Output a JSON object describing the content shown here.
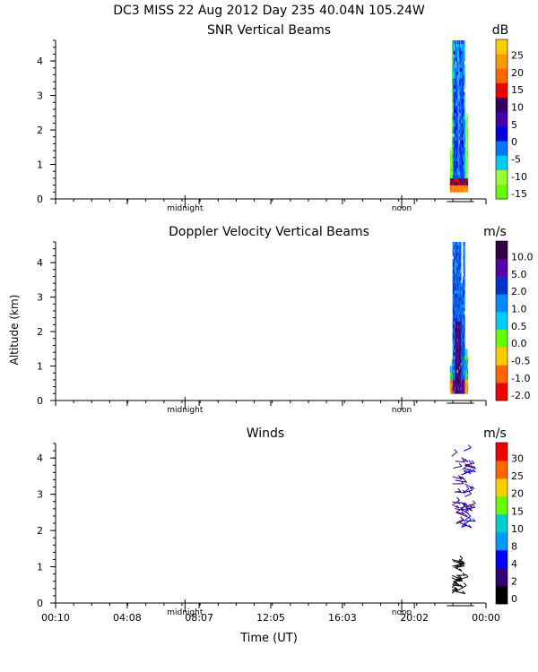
{
  "header": "DC3 MISS  22 Aug 2012 Day 235 40.04N 105.24W",
  "xlabel": "Time (UT)",
  "ylabel": "Altitude (km)",
  "time_ticks": [
    "00:10",
    "04:08",
    "08:07",
    "12:05",
    "16:03",
    "20:02",
    "00:00"
  ],
  "day_markers": [
    "midnight",
    "noon"
  ],
  "colors": {
    "snr_scale": [
      "#66ff00",
      "#99ff33",
      "#00ccff",
      "#0077ff",
      "#0000dd",
      "#4400aa",
      "#330066",
      "#ee0000",
      "#ff6600",
      "#ff9900",
      "#ffcc00"
    ],
    "velocity_scale": [
      "#ee0000",
      "#ff6600",
      "#ffcc00",
      "#66ff00",
      "#00ccff",
      "#0088ff",
      "#0033cc",
      "#5500aa",
      "#330044"
    ],
    "wind_scale": [
      "#000000",
      "#330077",
      "#0000ff",
      "#0099ff",
      "#00cccc",
      "#66ff00",
      "#ffcc00",
      "#ff6600",
      "#ee0000"
    ]
  },
  "chart_data": [
    {
      "type": "heatmap",
      "title": "SNR Vertical Beams",
      "unit": "dB",
      "x_range": [
        "00:10",
        "00:00"
      ],
      "ylim": [
        0,
        4.6
      ],
      "y_ticks": [
        0,
        1,
        2,
        3,
        4
      ],
      "colorbar_labels": [
        "25",
        "20",
        "15",
        "10",
        "5",
        "0",
        "-5",
        "-10",
        "-15"
      ],
      "data_time_span": [
        "22:00",
        "23:00"
      ],
      "data_altitude_span_km": [
        0.2,
        4.6
      ]
    },
    {
      "type": "heatmap",
      "title": "Doppler Velocity Vertical Beams",
      "unit": "m/s",
      "x_range": [
        "00:10",
        "00:00"
      ],
      "ylim": [
        0,
        4.6
      ],
      "y_ticks": [
        0,
        1,
        2,
        3,
        4
      ],
      "colorbar_labels": [
        "10.0",
        "5.0",
        "2.0",
        "1.0",
        "0.5",
        "0.0",
        "-0.5",
        "-1.0",
        "-2.0"
      ],
      "data_time_span": [
        "22:00",
        "23:00"
      ],
      "data_altitude_span_km": [
        0.2,
        4.6
      ]
    },
    {
      "type": "scatter",
      "title": "Winds",
      "unit": "m/s",
      "x_range": [
        "00:10",
        "00:00"
      ],
      "ylim": [
        0,
        4.4
      ],
      "y_ticks": [
        0,
        1,
        2,
        3,
        4
      ],
      "colorbar_labels": [
        "30",
        "25",
        "20",
        "15",
        "10",
        "8",
        "4",
        "2",
        "0"
      ],
      "data_time_span": [
        "22:00",
        "23:00"
      ],
      "data_altitude_span_km": [
        0.2,
        4.2
      ]
    }
  ]
}
